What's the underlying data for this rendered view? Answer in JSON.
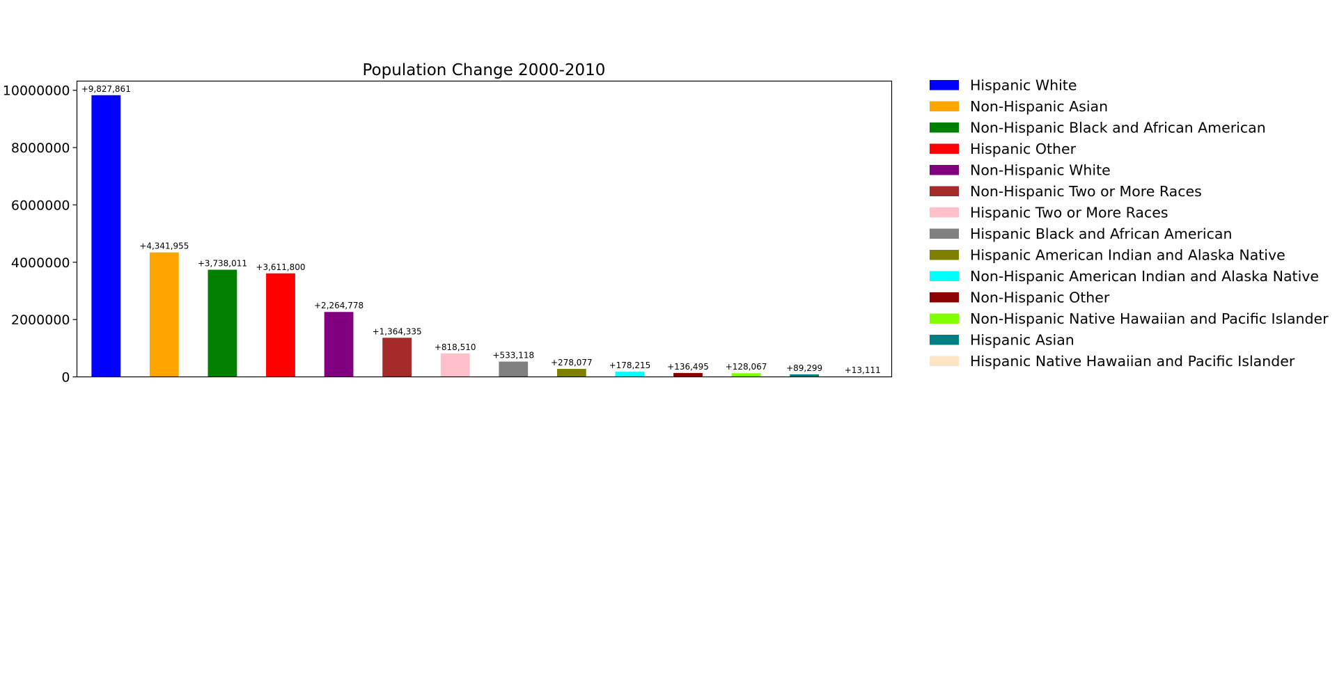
{
  "chart_data": {
    "type": "bar",
    "title": "Population Change 2000-2010",
    "xlabel": "",
    "ylabel": "",
    "ylim": [
      0,
      10320000
    ],
    "yticks": [
      0,
      2000000,
      4000000,
      6000000,
      8000000,
      10000000
    ],
    "ytick_labels": [
      "0",
      "2000000",
      "4000000",
      "6000000",
      "8000000",
      "10000000"
    ],
    "grid": false,
    "legend_placement": "outside-right",
    "categories": [
      "Hispanic White",
      "Non-Hispanic Asian",
      "Non-Hispanic Black and African American",
      "Hispanic Other",
      "Non-Hispanic White",
      "Non-Hispanic Two or More Races",
      "Hispanic Two or More Races",
      "Hispanic Black and African American",
      "Hispanic American Indian and Alaska Native",
      "Non-Hispanic American Indian and Alaska Native",
      "Non-Hispanic Other",
      "Non-Hispanic Native Hawaiian and Pacific Islander",
      "Hispanic Asian",
      "Hispanic Native Hawaiian and Pacific Islander"
    ],
    "values": [
      9827861,
      4341955,
      3738011,
      3611800,
      2264778,
      1364335,
      818510,
      533118,
      278077,
      178215,
      136495,
      128067,
      89299,
      13111
    ],
    "data_labels": [
      "+9,827,861",
      "+4,341,955",
      "+3,738,011",
      "+3,611,800",
      "+2,264,778",
      "+1,364,335",
      "+818,510",
      "+533,118",
      "+278,077",
      "+178,215",
      "+136,495",
      "+128,067",
      "+89,299",
      "+13,111"
    ],
    "colors": [
      "#0000ff",
      "#ffa500",
      "#008000",
      "#ff0000",
      "#800080",
      "#a52a2a",
      "#ffc0cb",
      "#808080",
      "#808000",
      "#00ffff",
      "#8b0000",
      "#7fff00",
      "#008080",
      "#ffe4c4"
    ]
  }
}
